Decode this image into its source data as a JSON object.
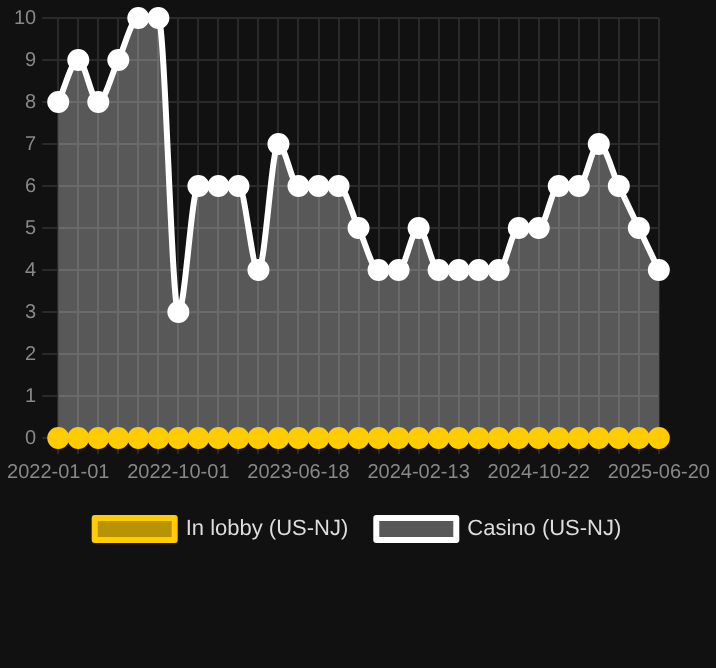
{
  "chart_data": {
    "type": "line",
    "categories": [
      "2022-01-01",
      null,
      null,
      null,
      null,
      null,
      "2022-10-01",
      null,
      null,
      null,
      null,
      null,
      "2023-06-18",
      null,
      null,
      null,
      null,
      null,
      "2024-02-13",
      null,
      null,
      null,
      null,
      null,
      "2024-10-22",
      null,
      null,
      null,
      null,
      null,
      "2025-06-20"
    ],
    "series": [
      {
        "name": "In lobby (US-NJ)",
        "type": "line",
        "color": "#ffcc00",
        "values": [
          0,
          0,
          0,
          0,
          0,
          0,
          0,
          0,
          0,
          0,
          0,
          0,
          0,
          0,
          0,
          0,
          0,
          0,
          0,
          0,
          0,
          0,
          0,
          0,
          0,
          0,
          0,
          0,
          0,
          0,
          0
        ]
      },
      {
        "name": "Casino (US-NJ)",
        "type": "area",
        "color": "#ffffff",
        "values": [
          8,
          9,
          8,
          9,
          10,
          10,
          3,
          6,
          6,
          6,
          4,
          7,
          6,
          6,
          6,
          5,
          4,
          4,
          5,
          4,
          4,
          4,
          4,
          5,
          5,
          6,
          6,
          7,
          6,
          5,
          4
        ]
      }
    ],
    "ylim": [
      0,
      10
    ],
    "yticks": [
      0,
      1,
      2,
      3,
      4,
      5,
      6,
      7,
      8,
      9,
      10
    ],
    "grid": true,
    "legend": "bottom",
    "marker": "circle"
  }
}
